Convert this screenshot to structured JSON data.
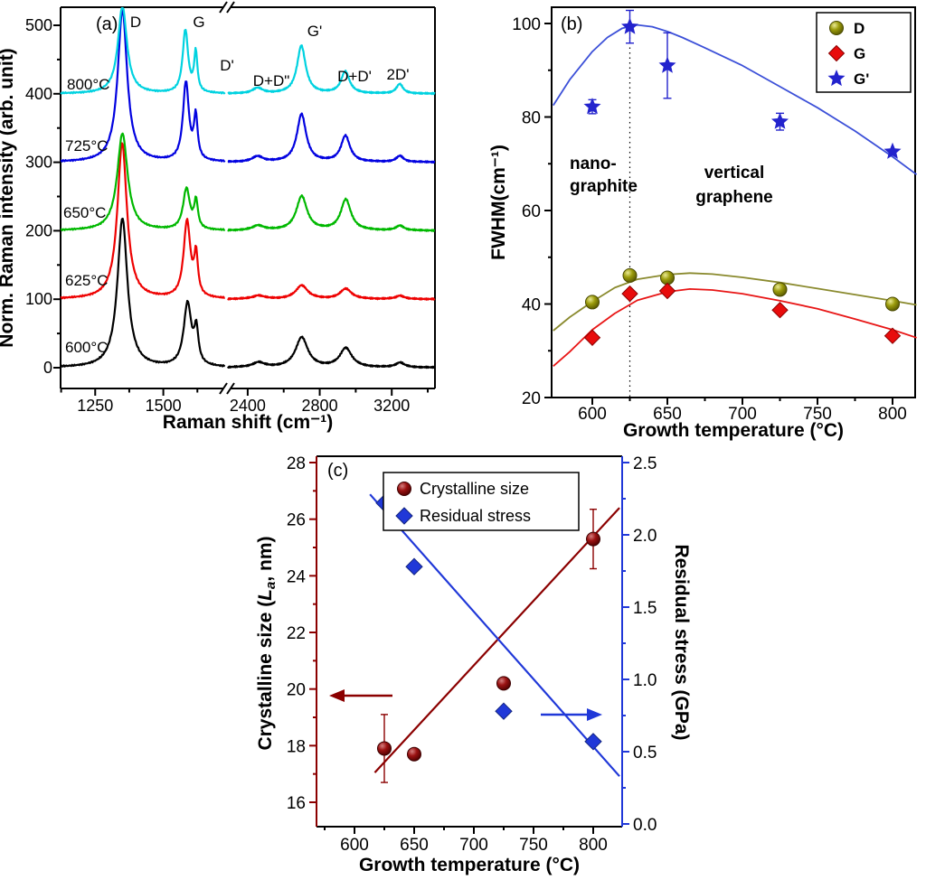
{
  "figure": {
    "background": "#ffffff"
  },
  "chart_data": [
    {
      "id": "a",
      "type": "line",
      "panel_label": "(a)",
      "description": "Normalized Raman spectra at different growth temperatures, vertically offset, broken x-axis",
      "xlabel": "Raman shift (cm⁻¹)",
      "ylabel": "Norm. Raman intensity (arb. unit)",
      "x_axis": {
        "broken": true,
        "segments": [
          {
            "range": [
              1123,
              1727
            ],
            "major_ticks": [
              1250,
              1500
            ],
            "minor_ticks": [
              1125,
              1375,
              1625
            ]
          },
          {
            "range": [
              2290,
              3440
            ],
            "major_ticks": [
              2400,
              2800,
              3200
            ],
            "minor_ticks": [
              2600,
              3000,
              3400
            ]
          }
        ]
      },
      "y_axis": {
        "range": [
          -30,
          527
        ],
        "major_ticks": [
          0,
          100,
          200,
          300,
          400,
          500
        ],
        "minor_ticks": [
          50,
          150,
          250,
          350,
          450
        ]
      },
      "peak_labels": [
        "D",
        "G",
        "D'",
        "D+D\"",
        "G'",
        "D+D'",
        "2D'"
      ],
      "spectra": [
        {
          "label": "600°C",
          "color": "#000000",
          "offset": 0,
          "peaks_center_height_hwhm": [
            [
              1350,
              218,
              22
            ],
            [
              1589,
              92,
              17
            ],
            [
              1621,
              48,
              9
            ],
            [
              2460,
              7,
              40
            ],
            [
              2700,
              44,
              41
            ],
            [
              2945,
              28,
              40
            ],
            [
              3246,
              7,
              30
            ]
          ]
        },
        {
          "label": "625°C",
          "color": "#ee0202",
          "offset": 100,
          "peaks_center_height_hwhm": [
            [
              1349,
              228,
              21
            ],
            [
              1587,
              112,
              15
            ],
            [
              1620,
              58,
              8
            ],
            [
              2460,
              5,
              40
            ],
            [
              2700,
              20,
              40
            ],
            [
              2945,
              15,
              38
            ],
            [
              3246,
              5,
              28
            ]
          ]
        },
        {
          "label": "650°C",
          "color": "#00b800",
          "offset": 200,
          "peaks_center_height_hwhm": [
            [
              1350,
              142,
              23
            ],
            [
              1585,
              60,
              15
            ],
            [
              1620,
              40,
              8
            ],
            [
              2458,
              7,
              38
            ],
            [
              2700,
              50,
              36
            ],
            [
              2945,
              45,
              34
            ],
            [
              3246,
              7,
              26
            ]
          ]
        },
        {
          "label": "725°C",
          "color": "#0202e0",
          "offset": 300,
          "peaks_center_height_hwhm": [
            [
              1350,
              222,
              21
            ],
            [
              1583,
              115,
              13
            ],
            [
              1619,
              62,
              8
            ],
            [
              2455,
              8,
              36
            ],
            [
              2699,
              70,
              31
            ],
            [
              2943,
              38,
              30
            ],
            [
              3245,
              9,
              24
            ]
          ]
        },
        {
          "label": "800°C",
          "color": "#00d2e0",
          "offset": 400,
          "peaks_center_height_hwhm": [
            [
              1350,
              128,
              20
            ],
            [
              1581,
              92,
              12
            ],
            [
              1619,
              58,
              7
            ],
            [
              2455,
              8,
              34
            ],
            [
              2698,
              70,
              29
            ],
            [
              2942,
              32,
              28
            ],
            [
              3244,
              14,
              22
            ]
          ]
        }
      ]
    },
    {
      "id": "b",
      "type": "scatter",
      "panel_label": "(b)",
      "xlabel": "Growth temperature (°C)",
      "ylabel": "FWHM(cm⁻¹)",
      "xlim": [
        573,
        815
      ],
      "ylim": [
        20,
        103
      ],
      "x_major_ticks": [
        600,
        650,
        700,
        750,
        800
      ],
      "x_minor_ticks": [
        625,
        675,
        725,
        775
      ],
      "y_major_ticks": [
        20,
        40,
        60,
        80,
        100
      ],
      "y_minor_ticks": [
        30,
        50,
        70,
        90
      ],
      "dashed_line_x": 625,
      "legend_position": "top-right",
      "annotations": [
        {
          "lines": [
            "nano-",
            "graphite"
          ]
        },
        {
          "lines": [
            "vertical",
            "graphene"
          ]
        }
      ],
      "series": [
        {
          "name": "D",
          "marker": "sphere",
          "color": "#8b8b00",
          "line_color": "#8a8a2e",
          "x": [
            600,
            625,
            650,
            725,
            800
          ],
          "y": [
            40.4,
            46.1,
            45.6,
            43.1,
            40.0
          ],
          "yerr": [
            0,
            0,
            0,
            0,
            0
          ],
          "trend": {
            "x": [
              574,
              585,
              600,
              615,
              630,
              650,
              665,
              680,
              700,
              725,
              750,
              775,
              800,
              816
            ],
            "y": [
              34.3,
              37.2,
              40.5,
              43.5,
              45.3,
              46.3,
              46.6,
              46.4,
              45.7,
              44.6,
              43.3,
              42.0,
              40.7,
              39.8
            ]
          }
        },
        {
          "name": "G",
          "marker": "diamond",
          "color": "#e80c0c",
          "line_color": "#e81616",
          "x": [
            600,
            625,
            650,
            725,
            800
          ],
          "y": [
            32.8,
            42.2,
            42.8,
            38.7,
            33.2
          ],
          "yerr": [
            0,
            0,
            0,
            0,
            0
          ],
          "trend": {
            "x": [
              574,
              585,
              600,
              615,
              630,
              650,
              665,
              680,
              700,
              725,
              750,
              775,
              800,
              816
            ],
            "y": [
              26.7,
              29.8,
              34.5,
              38.0,
              40.8,
              42.6,
              43.2,
              43.0,
              42.2,
              40.7,
              39.0,
              36.8,
              34.5,
              32.8
            ]
          }
        },
        {
          "name": "G'",
          "marker": "star",
          "color": "#2323cd",
          "line_color": "#3c50d8",
          "x": [
            600,
            625,
            650,
            725,
            800
          ],
          "y": [
            82.2,
            99.3,
            91.0,
            79.0,
            72.6
          ],
          "yerr": [
            1.5,
            3.5,
            7.0,
            1.8,
            0
          ],
          "trend": {
            "x": [
              574,
              585,
              600,
              610,
              620,
              630,
              640,
              650,
              660,
              675,
              700,
              725,
              750,
              775,
              800,
              816
            ],
            "y": [
              82.5,
              88.0,
              94.0,
              97.0,
              99.0,
              99.7,
              99.3,
              98.3,
              97.0,
              94.8,
              91.0,
              86.5,
              82.0,
              77.0,
              71.5,
              67.7
            ]
          }
        }
      ]
    },
    {
      "id": "c",
      "type": "scatter",
      "panel_label": "(c)",
      "xlabel": "Growth temperature (°C)",
      "ylabel_left": "Crystalline size (La, nm)",
      "ylabel_left_parts": {
        "prefix": "Crystalline size (",
        "italic": "L",
        "sub": "a",
        "suffix": ", nm)"
      },
      "ylabel_right": "Residual stress (GPa)",
      "xlim": [
        568,
        824
      ],
      "x_major_ticks": [
        600,
        650,
        700,
        750,
        800
      ],
      "x_minor_ticks": [
        575,
        625,
        675,
        725,
        775
      ],
      "left_axis": {
        "color": "#8b0000",
        "ylim": [
          15.1,
          28.2
        ],
        "major_ticks": [
          16,
          18,
          20,
          22,
          24,
          26,
          28
        ],
        "minor_ticks": [
          17,
          19,
          21,
          23,
          25,
          27
        ]
      },
      "right_axis": {
        "color": "#2038d8",
        "ylim": [
          0,
          2.55
        ],
        "major_ticks": [
          0,
          0.5,
          1,
          1.5,
          2,
          2.5
        ],
        "minor_ticks": [
          0.25,
          0.75,
          1.25,
          1.75,
          2.25
        ]
      },
      "legend_position": "top-center",
      "series": [
        {
          "name": "Crystalline size",
          "axis": "left",
          "marker": "sphere",
          "color": "#8b0000",
          "x": [
            625,
            650,
            725,
            800
          ],
          "y": [
            17.9,
            17.7,
            20.2,
            25.3
          ],
          "yerr": [
            1.2,
            0,
            0,
            1.05
          ],
          "fit_line": {
            "x": [
              617,
              822
            ],
            "y": [
              17.05,
              26.4
            ]
          }
        },
        {
          "name": "Residual stress",
          "axis": "right",
          "marker": "diamond",
          "color": "#2038d8",
          "x": [
            625,
            650,
            725,
            800
          ],
          "y": [
            2.22,
            1.78,
            0.78,
            0.57
          ],
          "yerr": [
            0,
            0,
            0,
            0
          ],
          "fit_line": {
            "x": [
              613,
              822
            ],
            "y": [
              2.28,
              0.33
            ]
          }
        }
      ]
    }
  ]
}
